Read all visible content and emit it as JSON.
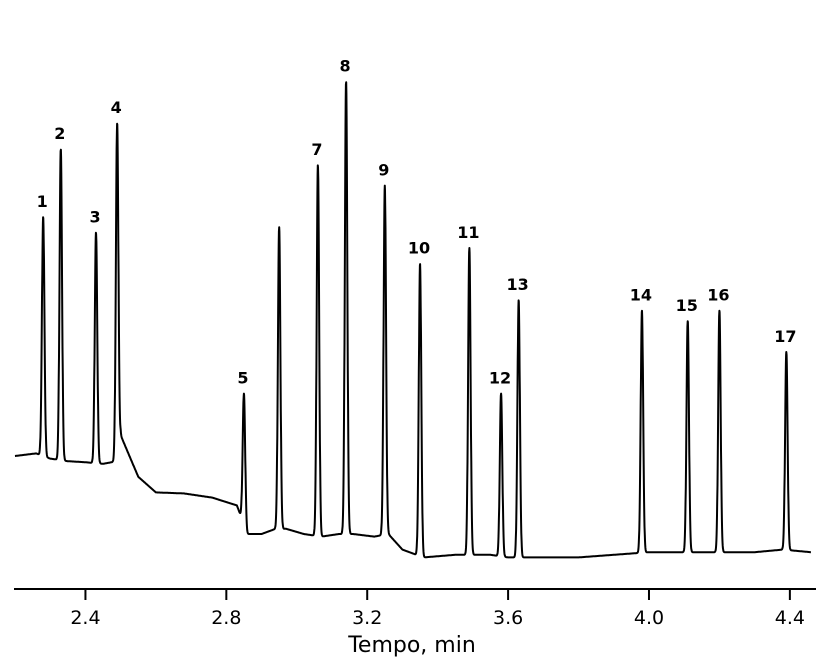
{
  "chart_data": {
    "type": "line",
    "title": "",
    "xlabel": "Tempo, min",
    "ylabel": "",
    "xlim": [
      2.2,
      4.46
    ],
    "ylim": [
      0,
      100
    ],
    "grid": false,
    "x_ticks": [
      {
        "value": 2.4,
        "label": "2.4"
      },
      {
        "value": 2.8,
        "label": "2.8"
      },
      {
        "value": 3.2,
        "label": "3.2"
      },
      {
        "value": 3.6,
        "label": "3.6"
      },
      {
        "value": 4.0,
        "label": "4.0"
      },
      {
        "value": 4.4,
        "label": "4.4"
      }
    ],
    "peaks": [
      {
        "label": "1",
        "x": 2.28,
        "height": 66
      },
      {
        "label": "2",
        "x": 2.33,
        "height": 79
      },
      {
        "label": "3",
        "x": 2.43,
        "height": 63
      },
      {
        "label": "4",
        "x": 2.49,
        "height": 84
      },
      {
        "label": "5",
        "x": 2.85,
        "height": 32
      },
      {
        "label": "",
        "x": 2.95,
        "height": 64
      },
      {
        "label": "7",
        "x": 3.06,
        "height": 76
      },
      {
        "label": "8",
        "x": 3.14,
        "height": 92
      },
      {
        "label": "9",
        "x": 3.25,
        "height": 72
      },
      {
        "label": "10",
        "x": 3.35,
        "height": 57
      },
      {
        "label": "11",
        "x": 3.49,
        "height": 60
      },
      {
        "label": "12",
        "x": 3.58,
        "height": 32
      },
      {
        "label": "13",
        "x": 3.63,
        "height": 50
      },
      {
        "label": "14",
        "x": 3.98,
        "height": 48
      },
      {
        "label": "15",
        "x": 4.11,
        "height": 46
      },
      {
        "label": "16",
        "x": 4.2,
        "height": 48
      },
      {
        "label": "17",
        "x": 4.39,
        "height": 40
      }
    ]
  }
}
